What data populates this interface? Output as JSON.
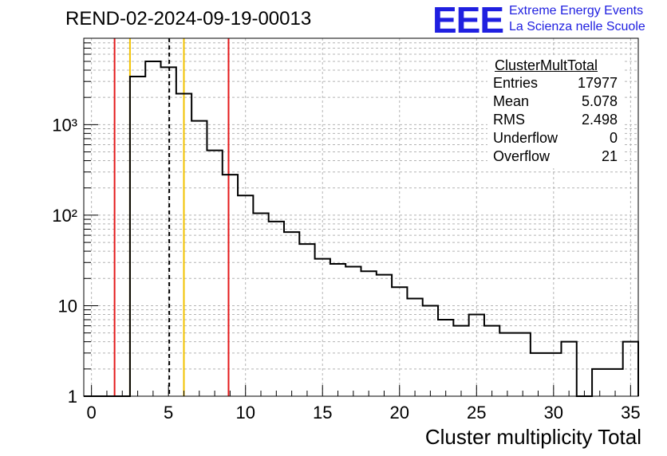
{
  "header": {
    "title": "REND-02-2024-09-19-00013"
  },
  "logo": {
    "letters": "EEE",
    "line1": "Extreme Energy Events",
    "line2": "La Scienza nelle Scuole",
    "color": "#1f1fe0"
  },
  "stats_box": {
    "title": "ClusterMultTotal",
    "rows": [
      {
        "label": "Entries",
        "value": "17977"
      },
      {
        "label": "Mean",
        "value": "5.078"
      },
      {
        "label": "RMS",
        "value": "2.498"
      },
      {
        "label": "Underflow",
        "value": "0"
      },
      {
        "label": "Overflow",
        "value": "21"
      }
    ]
  },
  "chart_data": {
    "type": "histogram",
    "title": "REND-02-2024-09-19-00013",
    "xlabel": "Cluster multiplicity Total",
    "ylabel": "",
    "xlim": [
      -0.5,
      35.5
    ],
    "ylim": [
      1,
      9000
    ],
    "y_scale": "log",
    "grid": true,
    "x_ticks": [
      0,
      5,
      10,
      15,
      20,
      25,
      30,
      35
    ],
    "y_ticks": [
      {
        "value": 1,
        "label": "1"
      },
      {
        "value": 10,
        "label": "10"
      },
      {
        "value": 100,
        "label": "10²"
      },
      {
        "value": 1000,
        "label": "10³"
      }
    ],
    "bin_width": 1,
    "bins": [
      {
        "low": -0.5,
        "count": 0
      },
      {
        "low": 0.5,
        "count": 0
      },
      {
        "low": 1.5,
        "count": 0
      },
      {
        "low": 2.5,
        "count": 3400
      },
      {
        "low": 3.5,
        "count": 5000
      },
      {
        "low": 4.5,
        "count": 4300
      },
      {
        "low": 5.5,
        "count": 2200
      },
      {
        "low": 6.5,
        "count": 1100
      },
      {
        "low": 7.5,
        "count": 520
      },
      {
        "low": 8.5,
        "count": 280
      },
      {
        "low": 9.5,
        "count": 165
      },
      {
        "low": 10.5,
        "count": 105
      },
      {
        "low": 11.5,
        "count": 85
      },
      {
        "low": 12.5,
        "count": 65
      },
      {
        "low": 13.5,
        "count": 48
      },
      {
        "low": 14.5,
        "count": 33
      },
      {
        "low": 15.5,
        "count": 29
      },
      {
        "low": 16.5,
        "count": 27
      },
      {
        "low": 17.5,
        "count": 24
      },
      {
        "low": 18.5,
        "count": 22
      },
      {
        "low": 19.5,
        "count": 16
      },
      {
        "low": 20.5,
        "count": 12
      },
      {
        "low": 21.5,
        "count": 10
      },
      {
        "low": 22.5,
        "count": 7
      },
      {
        "low": 23.5,
        "count": 6
      },
      {
        "low": 24.5,
        "count": 8
      },
      {
        "low": 25.5,
        "count": 6
      },
      {
        "low": 26.5,
        "count": 5
      },
      {
        "low": 27.5,
        "count": 5
      },
      {
        "low": 28.5,
        "count": 3
      },
      {
        "low": 29.5,
        "count": 3
      },
      {
        "low": 30.5,
        "count": 4
      },
      {
        "low": 31.5,
        "count": 0
      },
      {
        "low": 32.5,
        "count": 2
      },
      {
        "low": 33.5,
        "count": 2
      },
      {
        "low": 34.5,
        "count": 4
      }
    ],
    "vertical_lines": [
      {
        "x": 1.5,
        "color": "#e41a1c",
        "style": "solid"
      },
      {
        "x": 8.9,
        "color": "#e41a1c",
        "style": "solid"
      },
      {
        "x": 2.5,
        "color": "#f2c200",
        "style": "solid"
      },
      {
        "x": 6.0,
        "color": "#f2c200",
        "style": "solid"
      },
      {
        "x": 5.05,
        "color": "#000000",
        "style": "dashed"
      }
    ]
  }
}
